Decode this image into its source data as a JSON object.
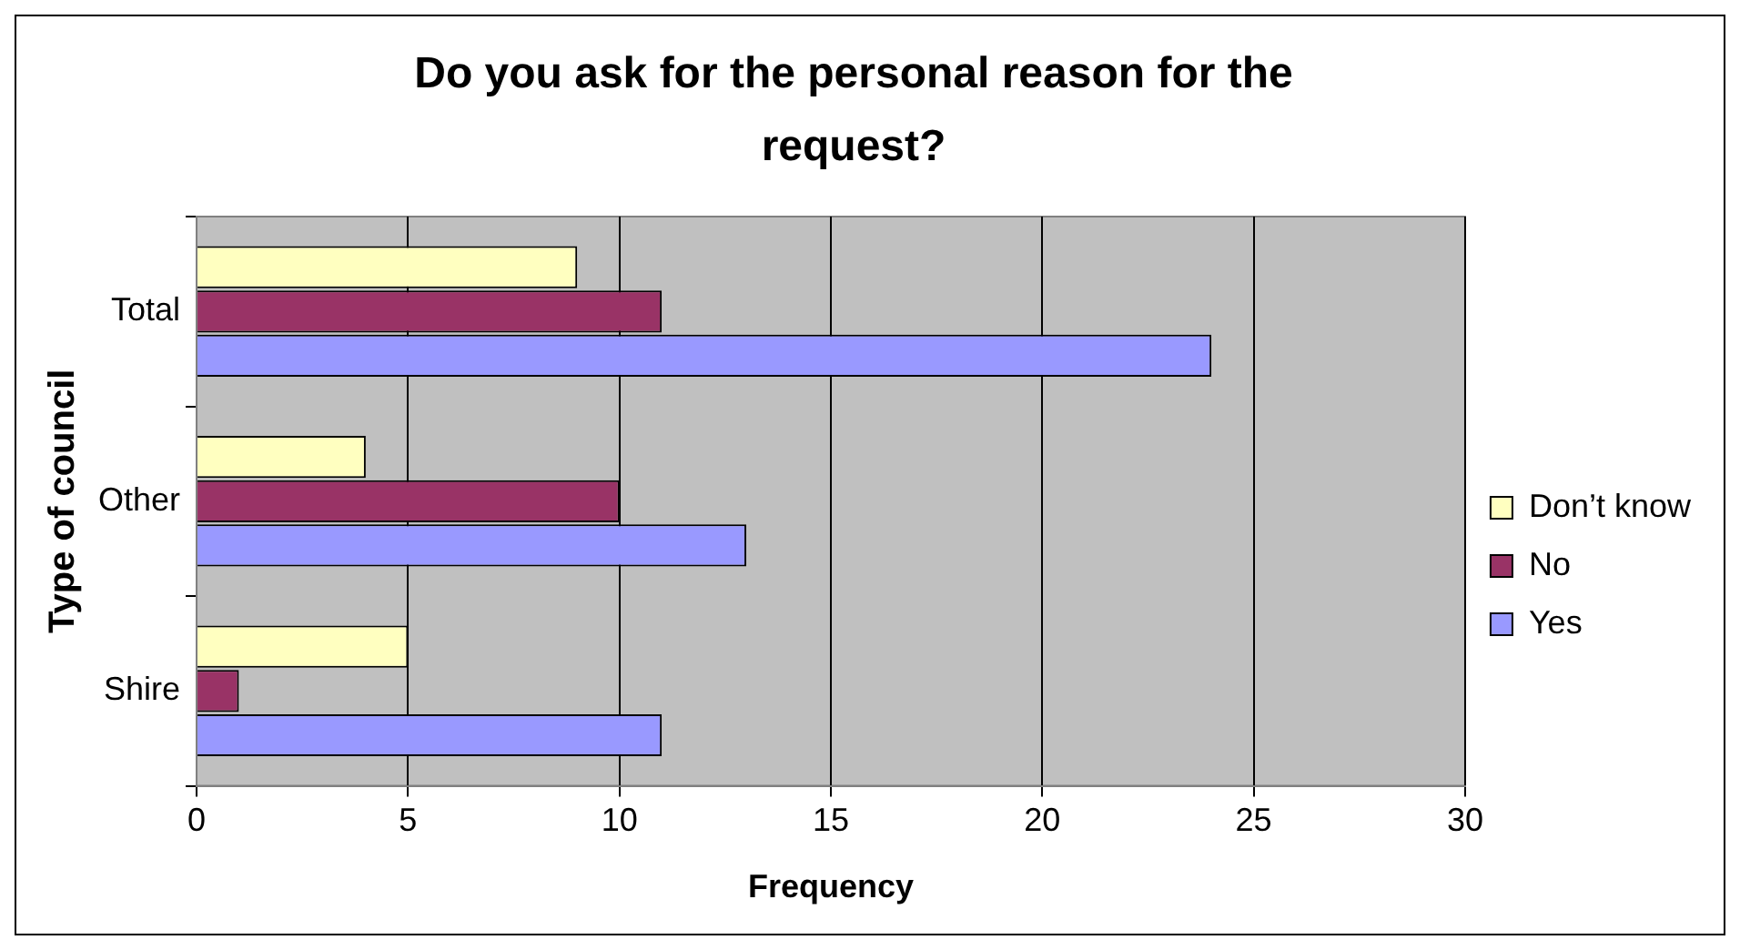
{
  "chart_data": {
    "type": "bar",
    "orientation": "horizontal",
    "title": "Do you ask for the personal reason for the request?",
    "xlabel": "Frequency",
    "ylabel": "Type of council",
    "categories": [
      "Total",
      "Other",
      "Shire"
    ],
    "series": [
      {
        "name": "Don’t know",
        "color": "#ffffc0",
        "values": [
          9,
          4,
          5
        ]
      },
      {
        "name": "No",
        "color": "#993366",
        "values": [
          11,
          10,
          1
        ]
      },
      {
        "name": "Yes",
        "color": "#9999ff",
        "values": [
          24,
          13,
          11
        ]
      }
    ],
    "xlim": [
      0,
      30
    ],
    "xticks": [
      0,
      5,
      10,
      15,
      20,
      25,
      30
    ],
    "grid": "x",
    "legend": "right"
  }
}
